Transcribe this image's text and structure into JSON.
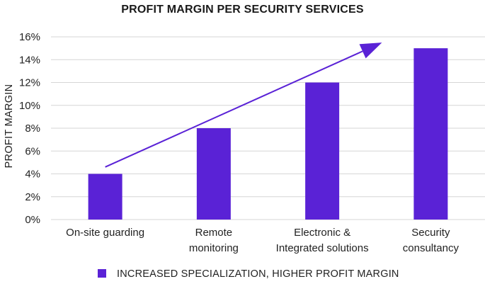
{
  "chart_data": {
    "type": "bar",
    "title": "PROFIT MARGIN PER SECURITY SERVICES",
    "ylabel": "PROFIT MARGIN",
    "xlabel": "",
    "categories": [
      [
        "On-site guarding"
      ],
      [
        "Remote",
        "monitoring"
      ],
      [
        "Electronic &",
        "Integrated solutions"
      ],
      [
        "Security",
        "consultancy"
      ]
    ],
    "series": [
      {
        "name": "INCREASED SPECIALIZATION, HIGHER PROFIT MARGIN",
        "values": [
          4,
          8,
          12,
          15
        ]
      }
    ],
    "ylim": [
      0,
      16
    ],
    "yticks": [
      0,
      2,
      4,
      6,
      8,
      10,
      12,
      14,
      16
    ],
    "ytick_suffix": "%",
    "grid": true,
    "legend_position": "bottom",
    "trend_arrow": {
      "from": [
        0,
        4.6
      ],
      "to": [
        2.55,
        15.5
      ]
    },
    "colors": {
      "bar": "#5a22d6",
      "grid": "#d6d6d6",
      "arrow": "#5a22d6"
    }
  }
}
